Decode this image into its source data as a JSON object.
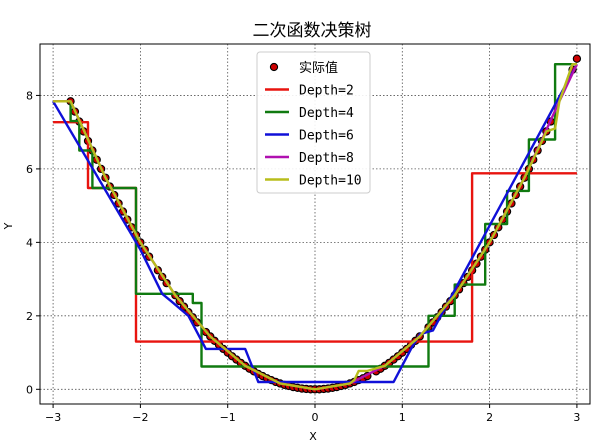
{
  "chart_data": {
    "type": "line",
    "title": "二次函数决策树",
    "xlabel": "X",
    "ylabel": "Y",
    "xlim": [
      -3.15,
      3.15
    ],
    "ylim": [
      -0.4,
      9.4
    ],
    "xticks": [
      -3,
      -2,
      -1,
      0,
      1,
      2,
      3
    ],
    "yticks": [
      0,
      2,
      4,
      6,
      8
    ],
    "grid": true,
    "legend_position": "top-center",
    "scatter": {
      "name": "实际值",
      "color": "#cc0000",
      "edge_color": "#000000",
      "x": [
        -2.8,
        -2.75,
        -2.7,
        -2.65,
        -2.6,
        -2.55,
        -2.5,
        -2.45,
        -2.4,
        -2.35,
        -2.3,
        -2.25,
        -2.2,
        -2.15,
        -2.1,
        -2.05,
        -2.0,
        -1.95,
        -1.9,
        -1.8,
        -1.75,
        -1.7,
        -1.6,
        -1.55,
        -1.5,
        -1.45,
        -1.4,
        -1.35,
        -1.25,
        -1.2,
        -1.15,
        -1.1,
        -1.05,
        -1.0,
        -0.95,
        -0.9,
        -0.85,
        -0.8,
        -0.75,
        -0.7,
        -0.65,
        -0.6,
        -0.55,
        -0.5,
        -0.45,
        -0.4,
        -0.35,
        -0.3,
        -0.25,
        -0.2,
        -0.15,
        -0.1,
        -0.05,
        0.0,
        0.05,
        0.1,
        0.15,
        0.2,
        0.25,
        0.3,
        0.35,
        0.4,
        0.45,
        0.5,
        0.55,
        0.6,
        0.7,
        0.75,
        0.8,
        0.85,
        0.9,
        0.95,
        1.0,
        1.05,
        1.1,
        1.15,
        1.2,
        1.3,
        1.35,
        1.4,
        1.45,
        1.5,
        1.55,
        1.6,
        1.65,
        1.7,
        1.75,
        1.8,
        1.85,
        1.9,
        1.95,
        2.0,
        2.05,
        2.1,
        2.15,
        2.2,
        2.25,
        2.3,
        2.35,
        2.4,
        2.45,
        2.5,
        2.55,
        2.6,
        2.65,
        2.7,
        2.95,
        3.0
      ],
      "y": [
        7.84,
        7.56,
        7.29,
        7.02,
        6.76,
        6.5,
        6.25,
        6.0,
        5.76,
        5.52,
        5.29,
        5.06,
        4.84,
        4.62,
        4.41,
        4.2,
        4.0,
        3.8,
        3.61,
        3.24,
        3.06,
        2.89,
        2.56,
        2.4,
        2.25,
        2.1,
        1.96,
        1.82,
        1.56,
        1.44,
        1.32,
        1.21,
        1.1,
        1.0,
        0.9,
        0.81,
        0.72,
        0.64,
        0.56,
        0.49,
        0.42,
        0.36,
        0.3,
        0.25,
        0.2,
        0.16,
        0.12,
        0.09,
        0.06,
        0.04,
        0.02,
        0.01,
        0.0,
        0.0,
        0.0,
        0.01,
        0.02,
        0.04,
        0.06,
        0.09,
        0.12,
        0.16,
        0.2,
        0.25,
        0.3,
        0.36,
        0.49,
        0.56,
        0.64,
        0.72,
        0.81,
        0.9,
        1.0,
        1.1,
        1.21,
        1.32,
        1.44,
        1.69,
        1.82,
        1.96,
        2.1,
        2.25,
        2.4,
        2.56,
        2.72,
        2.89,
        3.06,
        3.24,
        3.42,
        3.61,
        3.8,
        4.0,
        4.2,
        4.41,
        4.62,
        4.84,
        5.06,
        5.29,
        5.52,
        5.76,
        6.0,
        6.25,
        6.5,
        6.76,
        7.02,
        7.29,
        8.7,
        9.0
      ]
    },
    "series": [
      {
        "name": "Depth=2",
        "color": "#e8140f",
        "x": [
          -3.0,
          -2.6,
          -2.6,
          -2.05,
          -2.05,
          1.8,
          1.8,
          3.0
        ],
        "y": [
          7.27,
          7.27,
          5.48,
          5.48,
          1.3,
          1.3,
          5.88,
          5.88
        ]
      },
      {
        "name": "Depth=4",
        "color": "#107a10",
        "x": [
          -3.0,
          -2.8,
          -2.8,
          -2.7,
          -2.7,
          -2.55,
          -2.55,
          -2.05,
          -2.05,
          -1.4,
          -1.4,
          -1.3,
          -1.3,
          1.3,
          1.3,
          1.6,
          1.6,
          1.95,
          1.95,
          2.2,
          2.2,
          2.45,
          2.45,
          2.75,
          2.75,
          3.0
        ],
        "y": [
          7.84,
          7.84,
          7.3,
          7.3,
          6.5,
          6.5,
          5.48,
          5.48,
          2.6,
          2.6,
          2.35,
          2.35,
          0.62,
          0.62,
          2.0,
          2.0,
          2.85,
          2.85,
          4.5,
          4.5,
          5.4,
          5.4,
          6.8,
          6.8,
          8.85,
          8.85
        ],
        "smooth_segments": [
          [
            -2.55,
            -2.05
          ],
          [
            1.6,
            1.95
          ],
          [
            2.2,
            2.45
          ],
          [
            2.75,
            3.0
          ]
        ]
      },
      {
        "name": "Depth=6",
        "color": "#1010d8",
        "x": [
          -3.0,
          -2.0,
          -2.0,
          -1.75,
          -1.75,
          -1.65,
          -1.65,
          -1.45,
          -1.45,
          -1.25,
          -1.25,
          -1.0,
          -1.0,
          -0.8,
          -0.8,
          -0.65,
          -0.65,
          0.9,
          0.9,
          1.1,
          1.1,
          1.2,
          1.2,
          1.35,
          1.35,
          3.0
        ],
        "y": [
          7.84,
          3.8,
          3.8,
          2.6,
          2.6,
          2.4,
          2.4,
          2.0,
          2.0,
          1.1,
          1.1,
          1.1,
          1.1,
          1.1,
          1.1,
          0.2,
          0.2,
          0.2,
          0.2,
          1.1,
          1.1,
          1.5,
          1.5,
          1.6,
          1.6,
          8.85
        ]
      },
      {
        "name": "Depth=8",
        "color": "#b010b0",
        "x": [
          -3.0,
          -2.8,
          -2.4,
          -2.0,
          -1.6,
          -1.2,
          -0.8,
          -0.4,
          0.0,
          0.4,
          0.8,
          1.2,
          1.6,
          2.0,
          2.4,
          2.8,
          3.0
        ],
        "y": [
          7.84,
          7.84,
          5.76,
          4.0,
          2.56,
          1.44,
          0.64,
          0.16,
          0.0,
          0.16,
          0.64,
          1.44,
          2.56,
          4.0,
          5.76,
          7.84,
          8.85
        ]
      },
      {
        "name": "Depth=10",
        "color": "#b8bd1c",
        "x": [
          -3.0,
          -2.8,
          -2.4,
          -2.0,
          -1.6,
          -1.2,
          -0.8,
          -0.4,
          0.0,
          0.4,
          0.45,
          0.5,
          0.6,
          0.8,
          1.2,
          1.6,
          2.0,
          2.4,
          2.6,
          2.65,
          2.75,
          2.8,
          2.95,
          3.0
        ],
        "y": [
          7.84,
          7.84,
          5.76,
          4.0,
          2.56,
          1.44,
          0.64,
          0.16,
          0.0,
          0.16,
          0.25,
          0.5,
          0.5,
          0.64,
          1.44,
          2.56,
          4.0,
          5.76,
          6.76,
          7.02,
          7.1,
          7.84,
          8.85,
          8.85
        ]
      }
    ]
  }
}
